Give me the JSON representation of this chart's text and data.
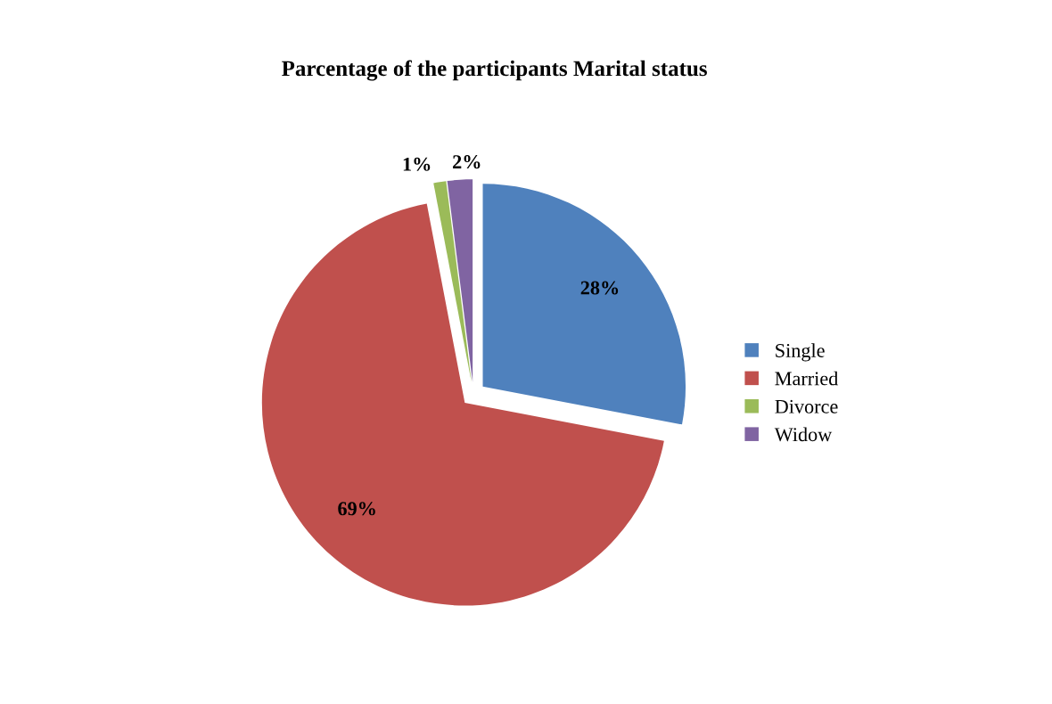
{
  "chart_data": {
    "type": "pie",
    "title": "Parcentage of the participants Marital status",
    "categories": [
      "Single",
      "Married",
      "Divorce",
      "Widow"
    ],
    "values": [
      28,
      69,
      1,
      2
    ],
    "colors": [
      "#4f81bd",
      "#c0504d",
      "#9bbb59",
      "#8064a2"
    ],
    "value_labels": [
      "28%",
      "69%",
      "1%",
      "2%"
    ],
    "legend": "right"
  }
}
